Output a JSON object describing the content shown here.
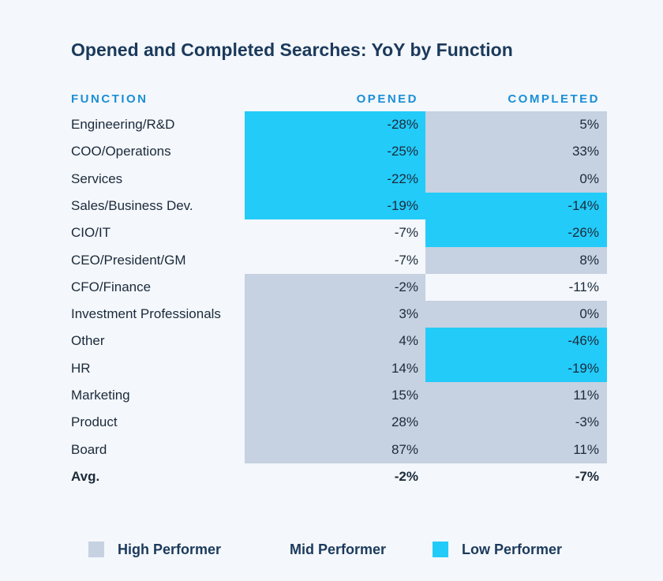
{
  "title": "Opened and Completed Searches: YoY by Function",
  "colors": {
    "high": "#c6d1e1",
    "mid": "#f4f7fb",
    "low": "#23cbf9"
  },
  "chart_data": {
    "type": "table",
    "title": "Opened and Completed Searches: YoY by Function",
    "columns": [
      "FUNCTION",
      "OPENED",
      "COMPLETED"
    ],
    "rows": [
      {
        "function": "Engineering/R&D",
        "opened": "-28%",
        "opened_tier": "low",
        "completed": "5%",
        "completed_tier": "high"
      },
      {
        "function": "COO/Operations",
        "opened": "-25%",
        "opened_tier": "low",
        "completed": "33%",
        "completed_tier": "high"
      },
      {
        "function": "Services",
        "opened": "-22%",
        "opened_tier": "low",
        "completed": "0%",
        "completed_tier": "high"
      },
      {
        "function": "Sales/Business Dev.",
        "opened": "-19%",
        "opened_tier": "low",
        "completed": "-14%",
        "completed_tier": "low"
      },
      {
        "function": "CIO/IT",
        "opened": "-7%",
        "opened_tier": "mid",
        "completed": "-26%",
        "completed_tier": "low"
      },
      {
        "function": "CEO/President/GM",
        "opened": "-7%",
        "opened_tier": "mid",
        "completed": "8%",
        "completed_tier": "high"
      },
      {
        "function": "CFO/Finance",
        "opened": "-2%",
        "opened_tier": "high",
        "completed": "-11%",
        "completed_tier": "mid"
      },
      {
        "function": "Investment Professionals",
        "opened": "3%",
        "opened_tier": "high",
        "completed": "0%",
        "completed_tier": "high"
      },
      {
        "function": "Other",
        "opened": "4%",
        "opened_tier": "high",
        "completed": "-46%",
        "completed_tier": "low"
      },
      {
        "function": "HR",
        "opened": "14%",
        "opened_tier": "high",
        "completed": "-19%",
        "completed_tier": "low"
      },
      {
        "function": "Marketing",
        "opened": "15%",
        "opened_tier": "high",
        "completed": "11%",
        "completed_tier": "high"
      },
      {
        "function": "Product",
        "opened": "28%",
        "opened_tier": "high",
        "completed": "-3%",
        "completed_tier": "high"
      },
      {
        "function": "Board",
        "opened": "87%",
        "opened_tier": "high",
        "completed": "11%",
        "completed_tier": "high"
      }
    ],
    "average": {
      "function": "Avg.",
      "opened": "-2%",
      "completed": "-7%"
    },
    "legend": [
      {
        "tier": "high",
        "label": "High Performer"
      },
      {
        "tier": "mid",
        "label": "Mid Performer"
      },
      {
        "tier": "low",
        "label": "Low Performer"
      }
    ],
    "legend_position": "bottom"
  }
}
